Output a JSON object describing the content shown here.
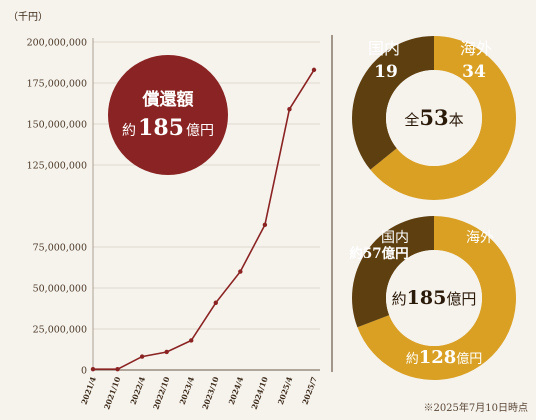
{
  "chart_data": [
    {
      "type": "line",
      "unit_label": "（千円）",
      "categories": [
        "2021/4",
        "2021/10",
        "2022/4",
        "2022/10",
        "2023/4",
        "2023/10",
        "2024/4",
        "2024/10",
        "2025/4",
        "2025/7"
      ],
      "values": [
        500000,
        500000,
        8200000,
        11000000,
        18000000,
        41000000,
        60000000,
        88500000,
        159000000,
        183000000
      ],
      "y_ticks": [
        "0",
        "25,000,000",
        "50,000,000",
        "75,000,000",
        "125,000,000",
        "150,000,000",
        "175,000,000",
        "200,000,000"
      ],
      "y_tick_values": [
        0,
        25000000,
        50000000,
        75000000,
        125000000,
        150000000,
        175000000,
        200000000
      ],
      "ylim": [
        0,
        200000000
      ],
      "grid": true,
      "line_color": "#8a2323",
      "badge": {
        "line1": "償還額",
        "line2_prefix": "約",
        "line2_number": "185",
        "line2_suffix": "億円",
        "color": "#8a2323"
      }
    },
    {
      "type": "pie",
      "variant": "donut",
      "slices": [
        {
          "name": "国内",
          "value": 19,
          "color": "#5e3f10"
        },
        {
          "name": "海外",
          "value": 34,
          "color": "#d9a024"
        }
      ],
      "center_prefix": "全",
      "center_number": "53",
      "center_suffix": "本"
    },
    {
      "type": "pie",
      "variant": "donut",
      "slices": [
        {
          "name": "国内",
          "value": 57,
          "color": "#5e3f10",
          "label": "約57億円"
        },
        {
          "name": "海外",
          "value": 128,
          "color": "#d9a024",
          "label_prefix": "約",
          "label_number": "128",
          "label_suffix": "億円"
        }
      ],
      "center_prefix": "約",
      "center_number": "185",
      "center_suffix": "億円"
    }
  ],
  "footnote": "※2025年7月10日時点",
  "colors": {
    "background": "#f6f2ec",
    "grid": "#d8d0c4",
    "divider": "#6a5a4a",
    "text": "#3a2a1a"
  }
}
